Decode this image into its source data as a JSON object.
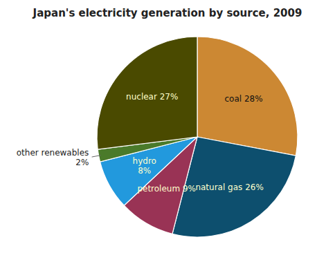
{
  "chart_data": {
    "type": "pie",
    "title": "Japan's electricity generation by source, 2009",
    "values": [
      28,
      26,
      9,
      8,
      2,
      27
    ],
    "value_labels": [
      "coal 28%",
      "natural gas 26%",
      "petroleum 9%",
      "hydro\n8%",
      "other renewables\n2%",
      "nuclear 27%"
    ],
    "colors": [
      "#cc8833",
      "#0d4f6e",
      "#993355",
      "#2299dd",
      "#4a7a2a",
      "#4a4a00"
    ],
    "data_labels": true
  }
}
